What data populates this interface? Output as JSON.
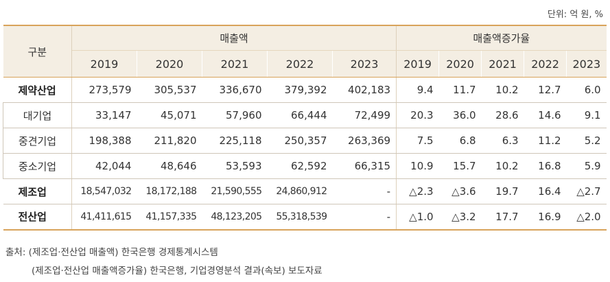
{
  "unit_label": "단위: 억 원, %",
  "header": {
    "category": "구분",
    "sales_group": "매출액",
    "growth_group": "매출액증가율",
    "years": [
      "2019",
      "2020",
      "2021",
      "2022",
      "2023"
    ]
  },
  "rows": [
    {
      "name": "제약산업",
      "type": "main",
      "sales": [
        "273,579",
        "305,537",
        "336,670",
        "379,392",
        "402,183"
      ],
      "growth": [
        "9.4",
        "11.7",
        "10.2",
        "12.7",
        "6.0"
      ]
    },
    {
      "name": "대기업",
      "type": "sub",
      "sales": [
        "33,147",
        "45,071",
        "57,960",
        "66,444",
        "72,499"
      ],
      "growth": [
        "20.3",
        "36.0",
        "28.6",
        "14.6",
        "9.1"
      ]
    },
    {
      "name": "중견기업",
      "type": "sub",
      "sales": [
        "198,388",
        "211,820",
        "225,118",
        "250,357",
        "263,369"
      ],
      "growth": [
        "7.5",
        "6.8",
        "6.3",
        "11.2",
        "5.2"
      ]
    },
    {
      "name": "중소기업",
      "type": "sub",
      "sales": [
        "42,044",
        "48,646",
        "53,593",
        "62,592",
        "66,315"
      ],
      "growth": [
        "10.9",
        "15.7",
        "10.2",
        "16.8",
        "5.9"
      ]
    },
    {
      "name": "제조업",
      "type": "main",
      "small": true,
      "sales": [
        "18,547,032",
        "18,172,188",
        "21,590,555",
        "24,860,912",
        "-"
      ],
      "growth": [
        "△2.3",
        "△3.6",
        "19.7",
        "16.4",
        "△2.7"
      ]
    },
    {
      "name": "전산업",
      "type": "main",
      "small": true,
      "sales": [
        "41,411,615",
        "41,157,335",
        "48,123,205",
        "55,318,539",
        "-"
      ],
      "growth": [
        "△1.0",
        "△3.2",
        "17.7",
        "16.9",
        "△2.0"
      ]
    }
  ],
  "source": {
    "line1": "출처: (제조업·전산업 매출액) 한국은행 경제통계시스템",
    "line2": "(제조업·전산업 매출액증가율) 한국은행, 기업경영분석 결과(속보) 보도자료"
  }
}
